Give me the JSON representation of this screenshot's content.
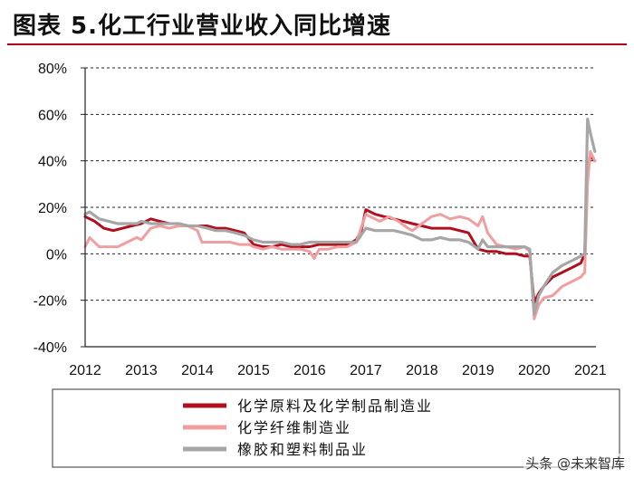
{
  "header": {
    "title": "图表 5.化工行业营业收入同比增速"
  },
  "watermark": "头条 @未来智库",
  "chart_data": {
    "type": "line",
    "title": "",
    "xlabel": "",
    "ylabel": "",
    "ylim": [
      -40,
      80
    ],
    "yticks": [
      -40,
      -20,
      0,
      20,
      40,
      60,
      80
    ],
    "ytick_labels": [
      "-40%",
      "-20%",
      "0%",
      "20%",
      "40%",
      "60%",
      "80%"
    ],
    "xlim": [
      2012,
      2021.1
    ],
    "xticks": [
      2012,
      2013,
      2014,
      2015,
      2016,
      2017,
      2018,
      2019,
      2020,
      2021
    ],
    "xtick_labels": [
      "2012",
      "2013",
      "2014",
      "2015",
      "2016",
      "2017",
      "2018",
      "2019",
      "2020",
      "2021"
    ],
    "grid": "horizontal dashed",
    "legend_position": "bottom",
    "series": [
      {
        "name": "化学原料及化学制品制造业",
        "color": "#b0101e",
        "points": [
          [
            2012.0,
            16
          ],
          [
            2012.17,
            14
          ],
          [
            2012.33,
            11
          ],
          [
            2012.5,
            10
          ],
          [
            2012.67,
            11
          ],
          [
            2012.83,
            12
          ],
          [
            2013.0,
            13
          ],
          [
            2013.17,
            15
          ],
          [
            2013.33,
            14
          ],
          [
            2013.5,
            13
          ],
          [
            2013.67,
            13
          ],
          [
            2013.83,
            12
          ],
          [
            2014.0,
            12
          ],
          [
            2014.17,
            12
          ],
          [
            2014.33,
            11
          ],
          [
            2014.5,
            11
          ],
          [
            2014.67,
            10
          ],
          [
            2014.83,
            9
          ],
          [
            2015.0,
            4
          ],
          [
            2015.17,
            3
          ],
          [
            2015.33,
            3
          ],
          [
            2015.5,
            4
          ],
          [
            2015.67,
            3
          ],
          [
            2015.83,
            3
          ],
          [
            2016.0,
            3
          ],
          [
            2016.17,
            4
          ],
          [
            2016.33,
            4
          ],
          [
            2016.5,
            4
          ],
          [
            2016.67,
            4
          ],
          [
            2016.83,
            6
          ],
          [
            2016.92,
            10
          ],
          [
            2017.0,
            19
          ],
          [
            2017.17,
            17
          ],
          [
            2017.33,
            16
          ],
          [
            2017.5,
            15
          ],
          [
            2017.67,
            14
          ],
          [
            2017.83,
            13
          ],
          [
            2018.0,
            12
          ],
          [
            2018.17,
            11
          ],
          [
            2018.33,
            11
          ],
          [
            2018.5,
            11
          ],
          [
            2018.67,
            10
          ],
          [
            2018.83,
            9
          ],
          [
            2019.0,
            2
          ],
          [
            2019.17,
            1
          ],
          [
            2019.33,
            1
          ],
          [
            2019.5,
            0
          ],
          [
            2019.67,
            0
          ],
          [
            2019.83,
            -1
          ],
          [
            2019.92,
            -1
          ],
          [
            2020.0,
            -21
          ],
          [
            2020.08,
            -17
          ],
          [
            2020.17,
            -14
          ],
          [
            2020.33,
            -10
          ],
          [
            2020.5,
            -8
          ],
          [
            2020.67,
            -6
          ],
          [
            2020.83,
            -4
          ],
          [
            2020.9,
            0
          ],
          [
            2020.95,
            35
          ],
          [
            2021.0,
            42
          ],
          [
            2021.08,
            40
          ]
        ]
      },
      {
        "name": "化学纤维制造业",
        "color": "#f09ea0",
        "points": [
          [
            2012.0,
            3
          ],
          [
            2012.08,
            7
          ],
          [
            2012.25,
            3
          ],
          [
            2012.42,
            3
          ],
          [
            2012.58,
            3
          ],
          [
            2012.75,
            5
          ],
          [
            2012.92,
            7
          ],
          [
            2013.0,
            6
          ],
          [
            2013.17,
            11
          ],
          [
            2013.33,
            12
          ],
          [
            2013.5,
            11
          ],
          [
            2013.67,
            12
          ],
          [
            2013.83,
            12
          ],
          [
            2014.0,
            10
          ],
          [
            2014.08,
            5
          ],
          [
            2014.25,
            5
          ],
          [
            2014.42,
            5
          ],
          [
            2014.58,
            5
          ],
          [
            2014.75,
            4
          ],
          [
            2014.92,
            4
          ],
          [
            2015.0,
            3
          ],
          [
            2015.17,
            2
          ],
          [
            2015.33,
            3
          ],
          [
            2015.5,
            2
          ],
          [
            2015.67,
            2
          ],
          [
            2015.83,
            2
          ],
          [
            2016.0,
            1
          ],
          [
            2016.08,
            -2
          ],
          [
            2016.17,
            2
          ],
          [
            2016.33,
            2
          ],
          [
            2016.5,
            3
          ],
          [
            2016.67,
            3
          ],
          [
            2016.83,
            5
          ],
          [
            2017.0,
            17
          ],
          [
            2017.08,
            16
          ],
          [
            2017.25,
            14
          ],
          [
            2017.42,
            16
          ],
          [
            2017.58,
            14
          ],
          [
            2017.75,
            11
          ],
          [
            2017.83,
            10
          ],
          [
            2018.0,
            13
          ],
          [
            2018.17,
            16
          ],
          [
            2018.33,
            17
          ],
          [
            2018.5,
            15
          ],
          [
            2018.67,
            16
          ],
          [
            2018.83,
            15
          ],
          [
            2019.0,
            12
          ],
          [
            2019.08,
            16
          ],
          [
            2019.17,
            9
          ],
          [
            2019.33,
            4
          ],
          [
            2019.5,
            3
          ],
          [
            2019.67,
            2
          ],
          [
            2019.83,
            3
          ],
          [
            2019.92,
            1
          ],
          [
            2020.0,
            -28
          ],
          [
            2020.08,
            -22
          ],
          [
            2020.17,
            -19
          ],
          [
            2020.33,
            -18
          ],
          [
            2020.5,
            -14
          ],
          [
            2020.67,
            -12
          ],
          [
            2020.83,
            -10
          ],
          [
            2020.9,
            -8
          ],
          [
            2020.95,
            30
          ],
          [
            2021.0,
            44
          ],
          [
            2021.08,
            40
          ]
        ]
      },
      {
        "name": "橡胶和塑料制品业",
        "color": "#a6a6a6",
        "points": [
          [
            2012.0,
            17
          ],
          [
            2012.08,
            18
          ],
          [
            2012.25,
            15
          ],
          [
            2012.42,
            14
          ],
          [
            2012.58,
            13
          ],
          [
            2012.75,
            13
          ],
          [
            2012.92,
            13
          ],
          [
            2013.0,
            14
          ],
          [
            2013.17,
            13
          ],
          [
            2013.33,
            13
          ],
          [
            2013.5,
            13
          ],
          [
            2013.67,
            13
          ],
          [
            2013.83,
            12
          ],
          [
            2014.0,
            12
          ],
          [
            2014.17,
            11
          ],
          [
            2014.33,
            10
          ],
          [
            2014.5,
            10
          ],
          [
            2014.67,
            9
          ],
          [
            2014.83,
            8
          ],
          [
            2015.0,
            6
          ],
          [
            2015.17,
            5
          ],
          [
            2015.33,
            5
          ],
          [
            2015.5,
            5
          ],
          [
            2015.67,
            4
          ],
          [
            2015.83,
            4
          ],
          [
            2016.0,
            5
          ],
          [
            2016.17,
            5
          ],
          [
            2016.33,
            5
          ],
          [
            2016.5,
            5
          ],
          [
            2016.67,
            5
          ],
          [
            2016.83,
            5
          ],
          [
            2017.0,
            11
          ],
          [
            2017.17,
            10
          ],
          [
            2017.33,
            10
          ],
          [
            2017.5,
            10
          ],
          [
            2017.67,
            9
          ],
          [
            2017.83,
            8
          ],
          [
            2018.0,
            6
          ],
          [
            2018.17,
            6
          ],
          [
            2018.33,
            7
          ],
          [
            2018.5,
            6
          ],
          [
            2018.67,
            6
          ],
          [
            2018.83,
            5
          ],
          [
            2019.0,
            2
          ],
          [
            2019.08,
            6
          ],
          [
            2019.17,
            3
          ],
          [
            2019.33,
            3
          ],
          [
            2019.5,
            3
          ],
          [
            2019.67,
            3
          ],
          [
            2019.83,
            3
          ],
          [
            2019.92,
            2
          ],
          [
            2020.0,
            -26
          ],
          [
            2020.08,
            -18
          ],
          [
            2020.17,
            -14
          ],
          [
            2020.33,
            -8
          ],
          [
            2020.5,
            -5
          ],
          [
            2020.67,
            -3
          ],
          [
            2020.83,
            -1
          ],
          [
            2020.9,
            0
          ],
          [
            2020.95,
            58
          ],
          [
            2021.0,
            52
          ],
          [
            2021.08,
            44
          ]
        ]
      }
    ]
  }
}
